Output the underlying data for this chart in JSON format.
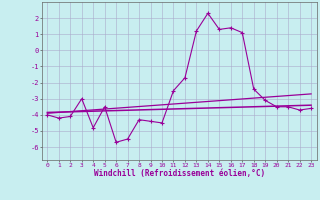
{
  "xlabel": "Windchill (Refroidissement éolien,°C)",
  "background_color": "#c8eef0",
  "line_color": "#990099",
  "grid_color": "#aaaacc",
  "xlim": [
    -0.5,
    23.5
  ],
  "ylim": [
    -6.8,
    3.0
  ],
  "yticks": [
    2,
    1,
    0,
    -1,
    -2,
    -3,
    -4,
    -5,
    -6
  ],
  "xticks": [
    0,
    1,
    2,
    3,
    4,
    5,
    6,
    7,
    8,
    9,
    10,
    11,
    12,
    13,
    14,
    15,
    16,
    17,
    18,
    19,
    20,
    21,
    22,
    23
  ],
  "line1_x": [
    0,
    1,
    2,
    3,
    4,
    5,
    6,
    7,
    8,
    9,
    10,
    11,
    12,
    13,
    14,
    15,
    16,
    17,
    18,
    19,
    20,
    21,
    22,
    23
  ],
  "line1_y": [
    -4.0,
    -4.2,
    -4.1,
    -3.0,
    -4.8,
    -3.5,
    -5.7,
    -5.5,
    -4.3,
    -4.4,
    -4.5,
    -2.5,
    -1.7,
    1.2,
    2.3,
    1.3,
    1.4,
    1.1,
    -2.4,
    -3.1,
    -3.5,
    -3.5,
    -3.7,
    -3.6
  ],
  "line2_x": [
    0,
    23
  ],
  "line2_y": [
    -3.9,
    -2.7
  ],
  "line3_x": [
    0,
    23
  ],
  "line3_y": [
    -3.85,
    -3.4
  ],
  "figsize": [
    3.2,
    2.0
  ],
  "dpi": 100
}
